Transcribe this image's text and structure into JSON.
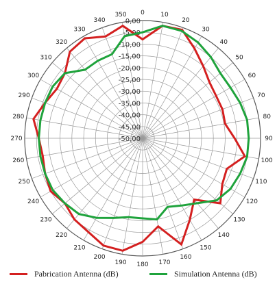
{
  "chart_data": {
    "type": "polar-line",
    "title": "",
    "angular_ticks": [
      0,
      10,
      20,
      30,
      40,
      50,
      60,
      70,
      80,
      90,
      100,
      110,
      120,
      130,
      140,
      150,
      160,
      170,
      180,
      190,
      200,
      210,
      220,
      230,
      240,
      250,
      260,
      270,
      280,
      290,
      300,
      310,
      320,
      330,
      340,
      350
    ],
    "radial_tick_labels": [
      "0,00",
      "-5,00",
      "-10,00",
      "-15,00",
      "-20,00",
      "-25,00",
      "-30,00",
      "-35,00",
      "-40,00",
      "-45,00",
      "-50,00"
    ],
    "r_range": [
      -50,
      0
    ],
    "angle_direction": "clockwise",
    "angle_zero": "top",
    "grid": true,
    "legend_position": "bottom",
    "series": [
      {
        "name": "Pabrication Antenna (dB)",
        "color": "#d42020",
        "angles": [
          0,
          10,
          20,
          30,
          40,
          50,
          60,
          70,
          80,
          90,
          100,
          110,
          120,
          130,
          140,
          150,
          160,
          170,
          180,
          190,
          200,
          210,
          220,
          230,
          240,
          250,
          260,
          270,
          280,
          290,
          300,
          310,
          320,
          330,
          340,
          350
        ],
        "values": [
          -8,
          -1.5,
          -1,
          -6,
          -10,
          -13,
          -14,
          -14,
          -14.5,
          -11,
          -6,
          -12,
          -11,
          -7,
          -16,
          -10,
          -2,
          -12,
          -6,
          -1.5,
          -1.5,
          -4,
          -5,
          -7,
          -5,
          -6,
          -7,
          -6,
          -3,
          -6,
          -8,
          -7,
          -2,
          -1,
          -4,
          -1.5
        ],
        "closed": true
      },
      {
        "name": "Simulation Antenna (dB)",
        "color": "#1fa33c",
        "angles": [
          0,
          10,
          20,
          30,
          40,
          50,
          60,
          70,
          80,
          90,
          100,
          110,
          120,
          130,
          140,
          150,
          160,
          170,
          180,
          190,
          200,
          210,
          220,
          230,
          240,
          250,
          260,
          270,
          280,
          290,
          300,
          310,
          320,
          330,
          340,
          350
        ],
        "values": [
          -5,
          -1.5,
          -1.5,
          -3,
          -5,
          -7,
          -7,
          -6,
          -5,
          -5,
          -5,
          -6,
          -7,
          -9,
          -14,
          -17,
          -19,
          -15,
          -16,
          -16,
          -14,
          -11,
          -8,
          -7,
          -6,
          -6,
          -6,
          -6,
          -6,
          -6,
          -6,
          -7,
          -12,
          -12,
          -12,
          -6
        ],
        "closed": true
      }
    ]
  }
}
